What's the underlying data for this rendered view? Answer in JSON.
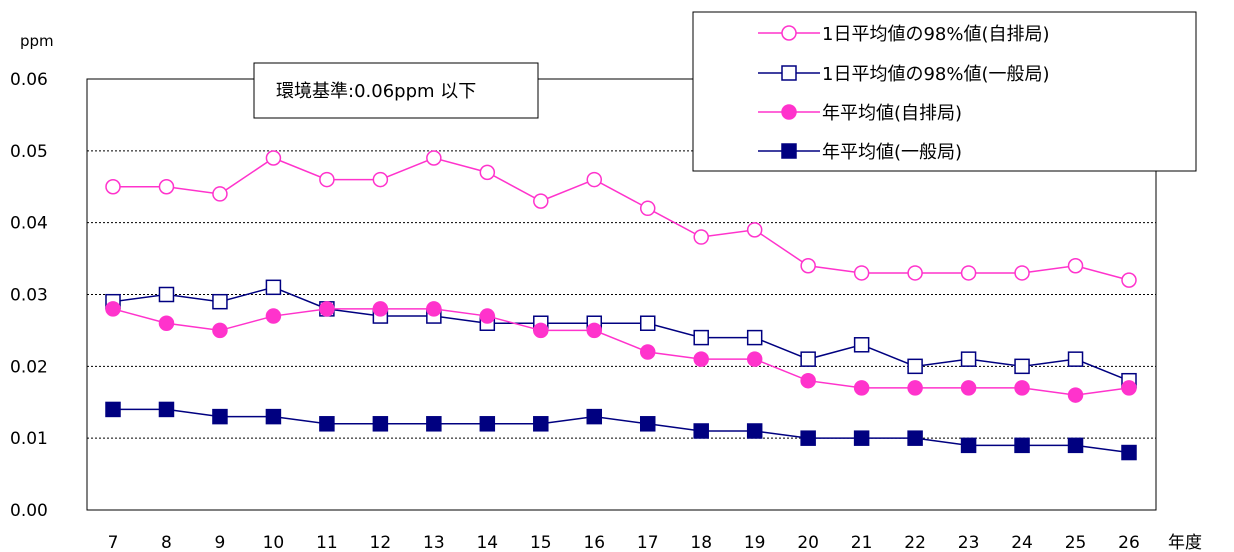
{
  "chart_data": {
    "type": "line",
    "ylabel": "ppm",
    "xlabel": "年度",
    "ylim": [
      0,
      0.06
    ],
    "yticks": [
      "0.00",
      "0.01",
      "0.02",
      "0.03",
      "0.04",
      "0.05",
      "0.06"
    ],
    "categories": [
      "7",
      "8",
      "9",
      "10",
      "11",
      "12",
      "13",
      "14",
      "15",
      "16",
      "17",
      "18",
      "19",
      "20",
      "21",
      "22",
      "23",
      "24",
      "25",
      "26"
    ],
    "grid": "horizontal dotted",
    "legend_position": "top-right",
    "annotation": "環境基準:0.06ppm 以下",
    "series": [
      {
        "name": "1日平均値の98%値(自排局)",
        "color": "#ff33cc",
        "marker": "circle-open",
        "values": [
          0.045,
          0.045,
          0.044,
          0.049,
          0.046,
          0.046,
          0.049,
          0.047,
          0.043,
          0.046,
          0.042,
          0.038,
          0.039,
          0.034,
          0.033,
          0.033,
          0.033,
          0.033,
          0.034,
          0.032
        ]
      },
      {
        "name": "1日平均値の98%値(一般局)",
        "color": "#000080",
        "marker": "square-open",
        "values": [
          0.029,
          0.03,
          0.029,
          0.031,
          0.028,
          0.027,
          0.027,
          0.026,
          0.026,
          0.026,
          0.026,
          0.024,
          0.024,
          0.021,
          0.023,
          0.02,
          0.021,
          0.02,
          0.021,
          0.018
        ]
      },
      {
        "name": "年平均値(自排局)",
        "color": "#ff33cc",
        "marker": "circle-filled",
        "values": [
          0.028,
          0.026,
          0.025,
          0.027,
          0.028,
          0.028,
          0.028,
          0.027,
          0.025,
          0.025,
          0.022,
          0.021,
          0.021,
          0.018,
          0.017,
          0.017,
          0.017,
          0.017,
          0.016,
          0.017
        ]
      },
      {
        "name": "年平均値(一般局)",
        "color": "#000080",
        "marker": "square-filled",
        "values": [
          0.014,
          0.014,
          0.013,
          0.013,
          0.012,
          0.012,
          0.012,
          0.012,
          0.012,
          0.013,
          0.012,
          0.011,
          0.011,
          0.01,
          0.01,
          0.01,
          0.009,
          0.009,
          0.009,
          0.008
        ]
      }
    ]
  }
}
